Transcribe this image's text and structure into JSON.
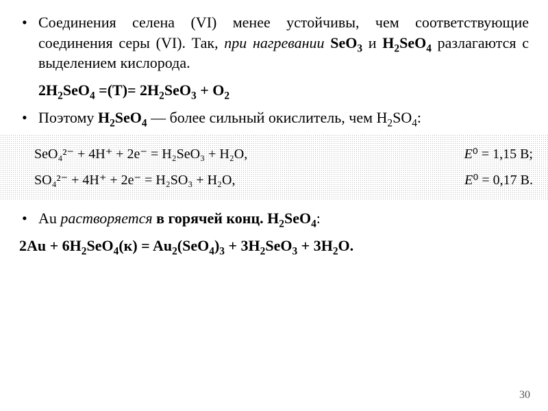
{
  "p1_pre": "Соединения селена (VI) менее устойчивы, чем соответствующие соединения серы (VI). Так, ",
  "p1_it": "при нагревании",
  "p1_mid1": " ",
  "p1_f1": "SeO",
  "p1_mid2": " и ",
  "p1_f2": "H",
  "p1_f3": "SeO",
  "p1_post": " разлагаются с выделением кислорода.",
  "eq1_a": "2H",
  "eq1_b": "SeO",
  "eq1_mid": " =(T)= 2H",
  "eq1_c": "SeO",
  "eq1_d": " + O",
  "p2_pre": "Поэтому ",
  "p2_f1": "H",
  "p2_f2": "SeO",
  "p2_post": " — более сильный окислитель, чем H",
  "p2_end": "SO",
  "p2_colon": ":",
  "band_r1_left": "SeO₄²⁻ + 4H⁺ + 2e⁻ = H₂SeO₃ + H₂O,",
  "band_r1_right": "E⁰ = 1,15 В;",
  "band_r2_left": "SO₄²⁻ + 4H⁺ + 2e⁻ = H₂SO₃ + H₂O,",
  "band_r2_right": "E⁰ = 0,17 В.",
  "p3_pre": "Au ",
  "p3_it": "растворяется",
  "p3_mid": " ",
  "p3_bold": "в горячей конц. H",
  "p3_bold2": "SeO",
  "p3_colon": ":",
  "eq2_a": "2Au + 6H",
  "eq2_b": "SeO",
  "eq2_c": "(к) = Au",
  "eq2_d": "(SeO",
  "eq2_e": ")",
  "eq2_f": " + 3H",
  "eq2_g": "SeO",
  "eq2_h": " + 3H",
  "eq2_i": "O.",
  "pagenum": "30"
}
